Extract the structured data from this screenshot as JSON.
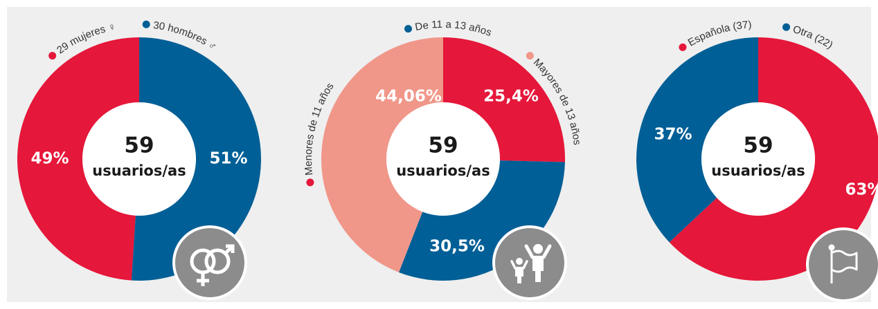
{
  "chart_data": [
    {
      "type": "pie",
      "direction": "counterclockwise",
      "categories": [
        "29 mujeres ♀",
        "30 hombres ♂"
      ],
      "values": [
        49,
        51
      ],
      "value_labels": [
        "49%",
        "51%"
      ],
      "colors": [
        "#e5173a",
        "#005f96"
      ],
      "total": 59,
      "total_label": "usuarios/as"
    },
    {
      "type": "pie",
      "direction": "clockwise",
      "categories": [
        "Menores de 11 años",
        "De 11 a 13 años",
        "Mayores de 13 años"
      ],
      "values": [
        25.4,
        30.5,
        44.06
      ],
      "value_labels": [
        "25,4%",
        "30,5%",
        "44,06%"
      ],
      "colors": [
        "#e5173a",
        "#005f96",
        "#f0978a"
      ],
      "total": 59,
      "total_label": "usuarios/as"
    },
    {
      "type": "pie",
      "direction": "clockwise",
      "categories": [
        "Española (37)",
        "Otra (22)"
      ],
      "values": [
        63,
        37
      ],
      "value_labels": [
        "63%",
        "37%"
      ],
      "colors": [
        "#e5173a",
        "#005f96"
      ],
      "total": 59,
      "total_label": "usuarios/as"
    }
  ]
}
